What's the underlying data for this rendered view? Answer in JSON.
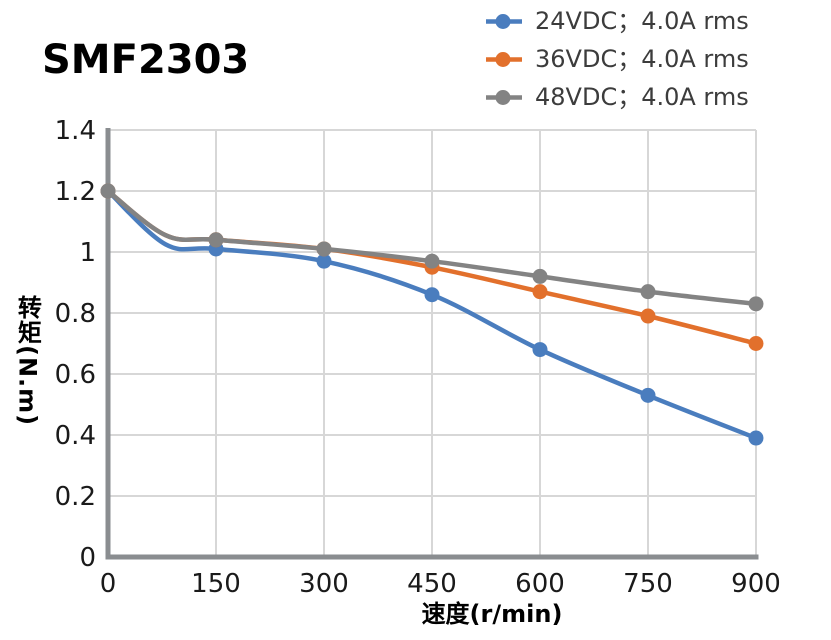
{
  "chart_data": {
    "type": "line",
    "title": "SMF2303",
    "xlabel": "速度(r/min)",
    "ylabel": "转矩(N.m)",
    "x": [
      0,
      150,
      300,
      450,
      600,
      750,
      900
    ],
    "xlim": [
      0,
      900
    ],
    "ylim": [
      0,
      1.4
    ],
    "x_ticks": [
      "0",
      "150",
      "300",
      "450",
      "600",
      "750",
      "900"
    ],
    "y_ticks": [
      "0",
      "0.2",
      "0.4",
      "0.6",
      "0.8",
      "1",
      "1.2",
      "1.4"
    ],
    "grid": true,
    "legend_position": "top-right",
    "series": [
      {
        "name": "24VDC；4.0A rms",
        "color": "#4A7DBE",
        "values": [
          1.2,
          1.01,
          0.97,
          0.86,
          0.68,
          0.53,
          0.39
        ]
      },
      {
        "name": "36VDC；4.0A rms",
        "color": "#E2702C",
        "values": [
          1.2,
          1.04,
          1.01,
          0.95,
          0.87,
          0.79,
          0.7
        ]
      },
      {
        "name": "48VDC；4.0A rms",
        "color": "#838383",
        "values": [
          1.2,
          1.04,
          1.01,
          0.97,
          0.92,
          0.87,
          0.83
        ]
      }
    ],
    "colors": {
      "grid": "#D7D7D7",
      "axis": "#8A8D90",
      "tick_text": "#1A1A1A",
      "legend_text": "#3C3C3C",
      "title_text": "#000000"
    }
  }
}
